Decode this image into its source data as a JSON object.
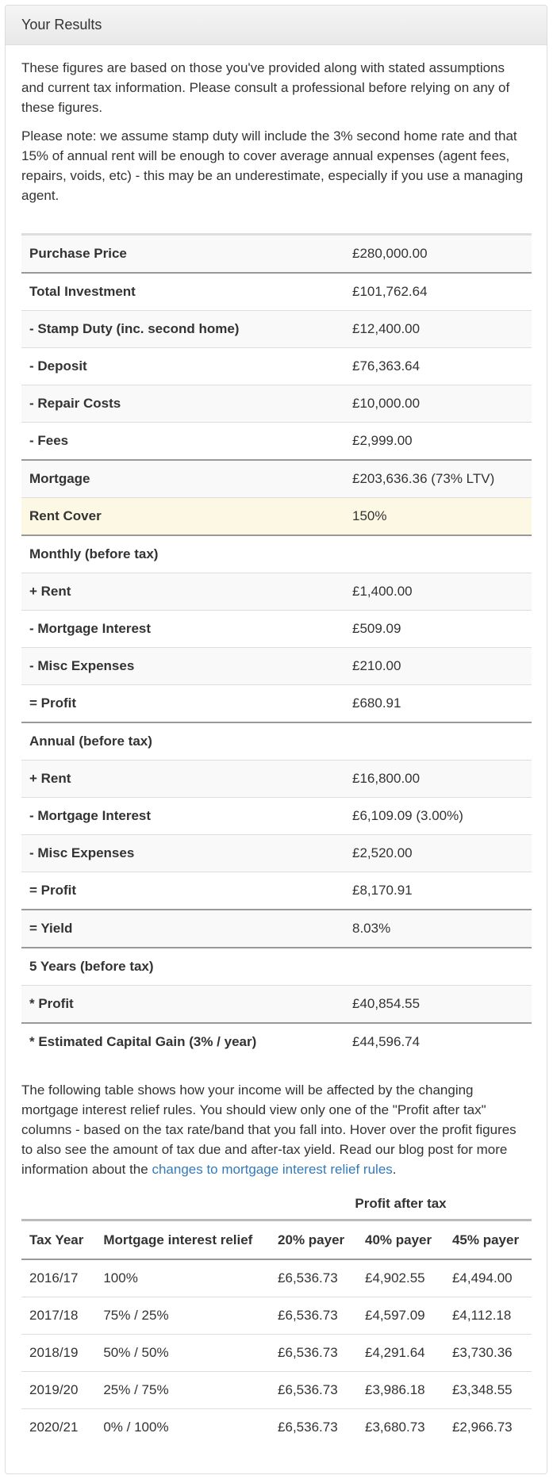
{
  "panel": {
    "title": "Your Results"
  },
  "intro": {
    "p1": "These figures are based on those you've provided along with stated assumptions and current tax information. Please consult a professional before relying on any of these figures.",
    "p2": "Please note: we assume stamp duty will include the 3% second home rate and that 15% of annual rent will be enough to cover average annual expenses (agent fees, repairs, voids, etc) - this may be an underestimate, especially if you use a managing agent."
  },
  "results": [
    {
      "label": "Purchase Price",
      "value": "£280,000.00"
    },
    {
      "label": "Total Investment",
      "value": "£101,762.64"
    },
    {
      "label": "- Stamp Duty (inc. second home)",
      "value": "£12,400.00"
    },
    {
      "label": "- Deposit",
      "value": "£76,363.64"
    },
    {
      "label": "- Repair Costs",
      "value": "£10,000.00"
    },
    {
      "label": "- Fees",
      "value": "£2,999.00"
    },
    {
      "label": "Mortgage",
      "value": "£203,636.36 (73% LTV)"
    },
    {
      "label": "Rent Cover",
      "value": "150%"
    },
    {
      "label": "Monthly (before tax)",
      "value": ""
    },
    {
      "label": "+ Rent",
      "value": "£1,400.00"
    },
    {
      "label": "- Mortgage Interest",
      "value": "£509.09"
    },
    {
      "label": "- Misc Expenses",
      "value": "£210.00"
    },
    {
      "label": "= Profit",
      "value": "£680.91"
    },
    {
      "label": "Annual (before tax)",
      "value": ""
    },
    {
      "label": "+ Rent",
      "value": "£16,800.00"
    },
    {
      "label": "- Mortgage Interest",
      "value": "£6,109.09 (3.00%)"
    },
    {
      "label": "- Misc Expenses",
      "value": "£2,520.00"
    },
    {
      "label": "= Profit",
      "value": "£8,170.91"
    },
    {
      "label": "= Yield",
      "value": "8.03%"
    },
    {
      "label": "5 Years (before tax)",
      "value": ""
    },
    {
      "label": "* Profit",
      "value": "£40,854.55"
    },
    {
      "label": "* Estimated Capital Gain (3% / year)",
      "value": "£44,596.74"
    }
  ],
  "relief_text": {
    "before_link": "The following table shows how your income will be affected by the changing mortgage interest relief rules. You should view only one of the \"Profit after tax\" columns - based on the tax rate/band that you fall into. Hover over the profit figures to also see the amount of tax due and after-tax yield. Read our blog post for more information about the ",
    "link": "changes to mortgage interest relief rules",
    "after_link": "."
  },
  "tax_table": {
    "group_header": "Profit after tax",
    "headers": [
      "Tax Year",
      "Mortgage interest relief",
      "20% payer",
      "40% payer",
      "45% payer"
    ],
    "rows": [
      [
        "2016/17",
        "100%",
        "£6,536.73",
        "£4,902.55",
        "£4,494.00"
      ],
      [
        "2017/18",
        "75% / 25%",
        "£6,536.73",
        "£4,597.09",
        "£4,112.18"
      ],
      [
        "2018/19",
        "50% / 50%",
        "£6,536.73",
        "£4,291.64",
        "£3,730.36"
      ],
      [
        "2019/20",
        "25% / 75%",
        "£6,536.73",
        "£3,986.18",
        "£3,348.55"
      ],
      [
        "2020/21",
        "0% / 100%",
        "£6,536.73",
        "£3,680.73",
        "£2,966.73"
      ]
    ]
  }
}
